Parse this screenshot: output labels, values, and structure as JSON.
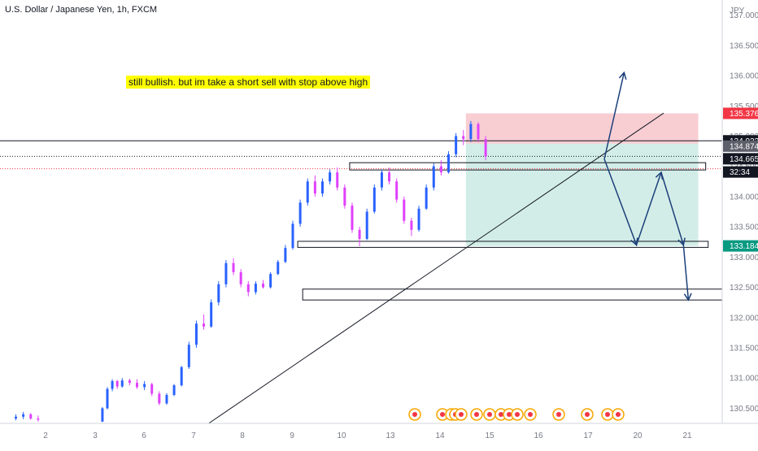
{
  "header": {
    "symbol_title": "U.S. Dollar / Japanese Yen, 1h, FXCM",
    "currency": "JPY"
  },
  "annotation": {
    "text": "still bullish. but im take a short sell with stop above high"
  },
  "colors": {
    "bull": "#2962ff",
    "bear": "#e040fb",
    "stop_zone": "#f7c6cb",
    "target_zone": "#cdebe4",
    "stop_label": "#f23645",
    "target_label": "#089981",
    "arrow": "#1c3f7a",
    "price_label": "#131722",
    "axis_text": "#787b86"
  },
  "chart_data": {
    "type": "candlestick",
    "title": "U.S. Dollar / Japanese Yen, 1h, FXCM",
    "x_ticks": [
      "2",
      "3",
      "6",
      "7",
      "8",
      "9",
      "10",
      "13",
      "14",
      "15",
      "16",
      "17",
      "20",
      "21"
    ],
    "y_ticks": [
      "137.000",
      "136.500",
      "136.000",
      "135.500",
      "135.000",
      "134.500",
      "134.000",
      "133.500",
      "133.000",
      "132.500",
      "132.000",
      "131.500",
      "131.000",
      "130.500"
    ],
    "ylim": [
      130.25,
      137.25
    ],
    "price_labels": [
      {
        "text": "135.376",
        "value": 135.376,
        "kind": "stop"
      },
      {
        "text": "134.922",
        "value": 134.922,
        "kind": "level"
      },
      {
        "text": "134.874",
        "value": 134.874,
        "kind": "level-grey"
      },
      {
        "text": "134.665",
        "value": 134.665,
        "kind": "current"
      },
      {
        "text": "32:34",
        "value": 134.46,
        "kind": "countdown"
      },
      {
        "text": "133.184",
        "value": 133.184,
        "kind": "target"
      }
    ],
    "horizontal_lines": [
      134.922,
      134.665
    ],
    "sr_zones": [
      {
        "x_from": 8.15,
        "x_to": 15.35,
        "y_low": 134.44,
        "y_high": 134.56
      },
      {
        "x_from": 7.1,
        "x_to": 15.4,
        "y_low": 133.16,
        "y_high": 133.26
      },
      {
        "x_from": 7.2,
        "x_to": 15.7,
        "y_low": 132.29,
        "y_high": 132.47
      }
    ],
    "position": {
      "x_from": 10.5,
      "x_to": 15.2,
      "entry": 134.874,
      "stop": 135.376,
      "target": 133.184
    },
    "trendline": {
      "from": [
        5.3,
        130.25
      ],
      "to": [
        14.5,
        135.38
      ]
    },
    "arrows": [
      {
        "from": [
          13.3,
          134.62
        ],
        "to": [
          13.7,
          136.05
        ],
        "head": true
      },
      {
        "from": [
          13.3,
          134.62
        ],
        "to": [
          13.7,
          133.2
        ],
        "via": [
          14.25,
          134.4
        ],
        "path": "zig"
      },
      {
        "from": [
          14.25,
          134.4
        ],
        "to": [
          14.6,
          133.2
        ],
        "via": [
          14.85,
          132.29
        ],
        "path": "drop"
      }
    ],
    "candles": [
      [
        1.4,
        130.33,
        130.4,
        130.3,
        130.36
      ],
      [
        1.55,
        130.36,
        130.44,
        130.32,
        130.4
      ],
      [
        1.7,
        130.4,
        130.42,
        130.31,
        130.33
      ],
      [
        1.85,
        130.33,
        130.38,
        130.28,
        130.31
      ],
      [
        3.15,
        130.28,
        130.52,
        130.27,
        130.5
      ],
      [
        3.25,
        130.5,
        130.85,
        130.48,
        130.82
      ],
      [
        3.35,
        130.82,
        130.98,
        130.78,
        130.95
      ],
      [
        3.45,
        130.95,
        130.97,
        130.82,
        130.86
      ],
      [
        3.55,
        130.86,
        131.0,
        130.84,
        130.96
      ],
      [
        3.7,
        130.96,
        130.99,
        130.88,
        130.92
      ],
      [
        3.85,
        130.92,
        130.98,
        130.82,
        130.85
      ],
      [
        4.0,
        130.85,
        130.95,
        130.8,
        130.9
      ],
      [
        4.15,
        130.9,
        130.92,
        130.7,
        130.74
      ],
      [
        4.3,
        130.74,
        130.78,
        130.55,
        130.58
      ],
      [
        4.45,
        130.58,
        130.75,
        130.56,
        130.72
      ],
      [
        4.6,
        130.72,
        130.9,
        130.7,
        130.88
      ],
      [
        4.75,
        130.88,
        131.2,
        130.86,
        131.18
      ],
      [
        4.9,
        131.18,
        131.6,
        131.15,
        131.55
      ],
      [
        5.05,
        131.55,
        131.95,
        131.5,
        131.9
      ],
      [
        5.2,
        131.9,
        132.05,
        131.8,
        131.85
      ],
      [
        5.35,
        131.85,
        132.3,
        131.83,
        132.25
      ],
      [
        5.5,
        132.25,
        132.6,
        132.2,
        132.55
      ],
      [
        5.65,
        132.55,
        132.95,
        132.5,
        132.9
      ],
      [
        5.8,
        132.9,
        132.98,
        132.7,
        132.75
      ],
      [
        5.95,
        132.75,
        132.8,
        132.5,
        132.55
      ],
      [
        6.1,
        132.55,
        132.6,
        132.35,
        132.42
      ],
      [
        6.25,
        132.42,
        132.6,
        132.38,
        132.56
      ],
      [
        6.4,
        132.56,
        132.62,
        132.48,
        132.5
      ],
      [
        6.55,
        132.5,
        132.75,
        132.48,
        132.72
      ],
      [
        6.7,
        132.72,
        132.95,
        132.7,
        132.92
      ],
      [
        6.85,
        132.92,
        133.2,
        132.9,
        133.15
      ],
      [
        7.0,
        133.15,
        133.6,
        133.12,
        133.55
      ],
      [
        7.15,
        133.55,
        133.95,
        133.5,
        133.9
      ],
      [
        7.3,
        133.9,
        134.3,
        133.85,
        134.25
      ],
      [
        7.45,
        134.25,
        134.35,
        134.0,
        134.05
      ],
      [
        7.6,
        134.05,
        134.3,
        134.0,
        134.25
      ],
      [
        7.75,
        134.25,
        134.45,
        134.2,
        134.4
      ],
      [
        7.9,
        134.4,
        134.48,
        134.1,
        134.15
      ],
      [
        8.05,
        134.15,
        134.2,
        133.8,
        133.85
      ],
      [
        8.2,
        133.85,
        133.9,
        133.4,
        133.45
      ],
      [
        8.35,
        133.45,
        133.5,
        133.18,
        133.3
      ],
      [
        8.5,
        133.3,
        133.8,
        133.28,
        133.75
      ],
      [
        8.65,
        133.75,
        134.2,
        133.72,
        134.15
      ],
      [
        8.8,
        134.15,
        134.45,
        134.1,
        134.4
      ],
      [
        8.95,
        134.4,
        134.48,
        134.2,
        134.25
      ],
      [
        9.1,
        134.25,
        134.3,
        133.9,
        133.95
      ],
      [
        9.25,
        133.95,
        134.0,
        133.55,
        133.6
      ],
      [
        9.4,
        133.6,
        133.65,
        133.35,
        133.45
      ],
      [
        9.55,
        133.45,
        133.85,
        133.42,
        133.8
      ],
      [
        9.7,
        133.8,
        134.2,
        133.78,
        134.15
      ],
      [
        9.85,
        134.15,
        134.55,
        134.1,
        134.5
      ],
      [
        10.0,
        134.5,
        134.6,
        134.35,
        134.4
      ],
      [
        10.15,
        134.4,
        134.75,
        134.38,
        134.7
      ],
      [
        10.3,
        134.7,
        135.05,
        134.65,
        135.0
      ],
      [
        10.45,
        135.0,
        135.1,
        134.85,
        134.95
      ],
      [
        10.6,
        134.95,
        135.25,
        134.9,
        135.2
      ],
      [
        10.75,
        135.2,
        135.23,
        134.9,
        134.95
      ],
      [
        10.9,
        134.95,
        135.0,
        134.6,
        134.665
      ]
    ]
  }
}
